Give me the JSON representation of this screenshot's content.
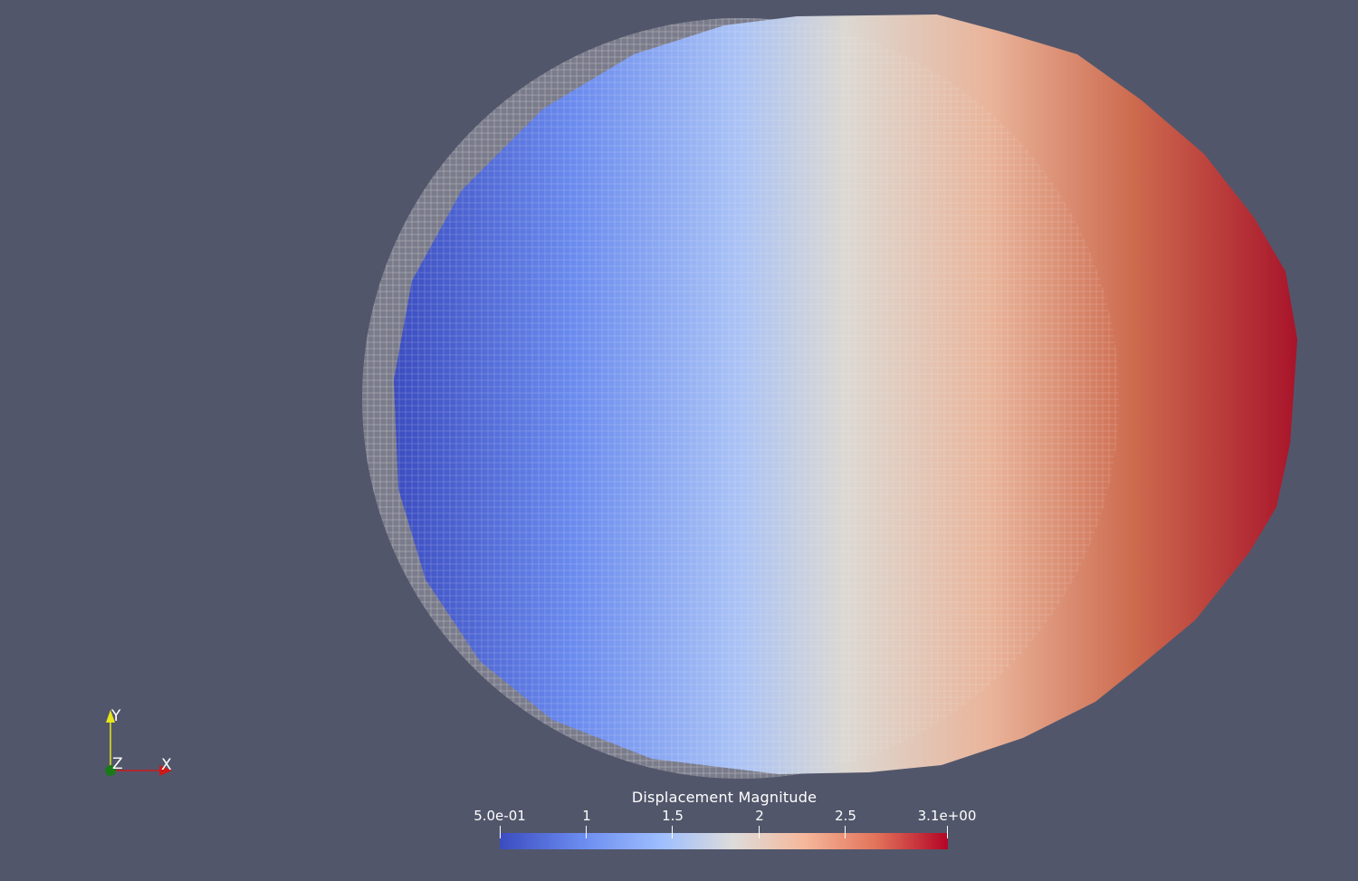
{
  "scalar_bar": {
    "title": "Displacement Magnitude",
    "ticks": [
      {
        "label": "5.0e-01",
        "value": 0.5
      },
      {
        "label": "1",
        "value": 1.0
      },
      {
        "label": "1.5",
        "value": 1.5
      },
      {
        "label": "2",
        "value": 2.0
      },
      {
        "label": "2.5",
        "value": 2.5
      },
      {
        "label": "3.1e+00",
        "value": 3.1
      }
    ],
    "range": [
      0.5,
      3.1
    ],
    "colormap": [
      "#3b4cc0",
      "#6a8bef",
      "#9ebefe",
      "#dddcdb",
      "#f6b89b",
      "#e2735a",
      "#b40426"
    ]
  },
  "orientation_axes": {
    "x_label": "X",
    "y_label": "Y",
    "z_label": "Z",
    "x_color": "#cc1a1a",
    "y_color": "#e6e61a",
    "z_color": "#1a7a1a"
  },
  "colors": {
    "background": "#52566b",
    "mesh_wire": "#d8d8d8"
  }
}
